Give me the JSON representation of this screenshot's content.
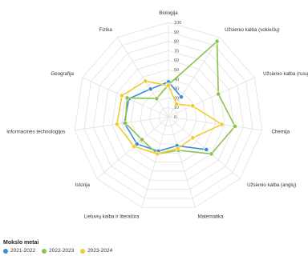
{
  "chart_data": {
    "type": "radar",
    "categories": [
      "Biologija",
      "Užsienio kalba (vokiečių)",
      "Užsienio kalba (rusų)",
      "Chemija",
      "Užsienio kalba (anglų)",
      "Matematika",
      "Lietuvių kalba ir literatūra",
      "Istorija",
      "Informacinės technologijos",
      "Geografija",
      "Fizika"
    ],
    "radial_ticks": [
      0,
      10,
      20,
      30,
      40,
      50,
      60,
      70,
      80,
      90,
      100
    ],
    "range": [
      0,
      100
    ],
    "grid": true,
    "legend_position": "bottom-left",
    "legend_title": "Mokslo metai",
    "series": [
      {
        "name": "2021-2022",
        "color": "#3b8fd0",
        "values": [
          37,
          25,
          null,
          null,
          53,
          32,
          38,
          44,
          47,
          46,
          35
        ]
      },
      {
        "name": "2022-2023",
        "color": "#8bc34a",
        "values": [
          34,
          95,
          58,
          71,
          60,
          37,
          41,
          37,
          46,
          48,
          23
        ]
      },
      {
        "name": "2023-2024",
        "color": "#f0cc2e",
        "values": [
          33,
          16,
          28,
          57,
          34,
          35,
          41,
          48,
          55,
          54,
          45
        ]
      }
    ]
  }
}
